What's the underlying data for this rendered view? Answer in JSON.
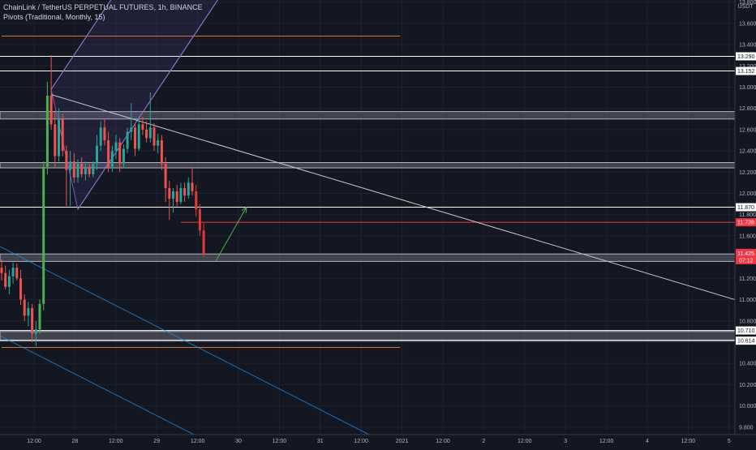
{
  "header": {
    "symbol_line": "ChainLink / TetherUS PERPETUAL FUTURES, 1h, BINANCE",
    "indicator_line": "Pivots (Traditional, Monthly, 15)"
  },
  "price_axis": {
    "currency": "USDT",
    "ticks": [
      "13.800",
      "13.600",
      "13.400",
      "13.200",
      "13.000",
      "12.800",
      "12.600",
      "12.400",
      "12.200",
      "12.000",
      "11.800",
      "11.600",
      "11.400",
      "11.200",
      "11.000",
      "10.800",
      "10.600",
      "10.400",
      "10.200",
      "10.000",
      "9.800"
    ],
    "level_labels": [
      {
        "text": "13.290",
        "value": 13.29
      },
      {
        "text": "13.152",
        "value": 13.152
      },
      {
        "text": "11.870",
        "value": 11.87
      },
      {
        "text": "11.728",
        "value": 11.728
      },
      {
        "text": "10.710",
        "value": 10.71
      },
      {
        "text": "10.614",
        "value": 10.614
      }
    ],
    "last_price": {
      "price": "11.425",
      "countdown": "07:12",
      "value": 11.425
    }
  },
  "time_axis": {
    "ticks": [
      "12:00",
      "28",
      "12:00",
      "29",
      "12:00",
      "30",
      "12:00",
      "31",
      "12:00",
      "2021",
      "12:00",
      "2",
      "12:00",
      "3",
      "12:00",
      "4",
      "12:00",
      "5"
    ]
  },
  "colors": {
    "background": "#131722",
    "grid": "#1e222d",
    "up": "#26a69a",
    "down": "#ef5350",
    "bright_up": "#4caf50",
    "bright_down": "#e53935",
    "level_line": "#ffffff",
    "zone": "#787b86",
    "pivot": "#e0702a",
    "channel": "#7e57c2",
    "teal_line": "#2196f3",
    "red_level": "#f23645",
    "arrow": "#4caf50"
  },
  "chart_data": {
    "type": "candlestick",
    "title": "ChainLink / TetherUS PERPETUAL FUTURES, 1h, BINANCE",
    "timeframe": "1h",
    "ylim": [
      9.73,
      13.82
    ],
    "grid": true,
    "candles": [
      {
        "o": 11.3,
        "h": 11.38,
        "l": 11.18,
        "c": 11.25
      },
      {
        "o": 11.25,
        "h": 11.32,
        "l": 11.1,
        "c": 11.12
      },
      {
        "o": 11.12,
        "h": 11.28,
        "l": 11.05,
        "c": 11.22
      },
      {
        "o": 11.22,
        "h": 11.35,
        "l": 11.15,
        "c": 11.3
      },
      {
        "o": 11.3,
        "h": 11.34,
        "l": 11.18,
        "c": 11.2
      },
      {
        "o": 11.2,
        "h": 11.28,
        "l": 10.95,
        "c": 11.0
      },
      {
        "o": 11.0,
        "h": 11.05,
        "l": 10.8,
        "c": 10.85
      },
      {
        "o": 10.85,
        "h": 10.98,
        "l": 10.75,
        "c": 10.92
      },
      {
        "o": 10.92,
        "h": 10.96,
        "l": 10.6,
        "c": 10.68
      },
      {
        "o": 10.68,
        "h": 10.8,
        "l": 10.56,
        "c": 10.72
      },
      {
        "o": 10.72,
        "h": 11.0,
        "l": 10.68,
        "c": 10.96
      },
      {
        "o": 10.96,
        "h": 12.3,
        "l": 10.9,
        "c": 12.25
      },
      {
        "o": 12.25,
        "h": 13.05,
        "l": 12.18,
        "c": 12.92
      },
      {
        "o": 12.92,
        "h": 13.3,
        "l": 12.6,
        "c": 12.65
      },
      {
        "o": 12.65,
        "h": 12.78,
        "l": 12.25,
        "c": 12.35
      },
      {
        "o": 12.35,
        "h": 12.8,
        "l": 12.3,
        "c": 12.7
      },
      {
        "o": 12.7,
        "h": 12.75,
        "l": 12.35,
        "c": 12.4
      },
      {
        "o": 12.4,
        "h": 12.45,
        "l": 11.88,
        "c": 12.22
      },
      {
        "o": 12.22,
        "h": 12.4,
        "l": 11.88,
        "c": 12.3
      },
      {
        "o": 12.3,
        "h": 12.38,
        "l": 12.1,
        "c": 12.15
      },
      {
        "o": 12.15,
        "h": 12.32,
        "l": 12.1,
        "c": 12.28
      },
      {
        "o": 12.28,
        "h": 12.34,
        "l": 12.15,
        "c": 12.18
      },
      {
        "o": 12.18,
        "h": 12.3,
        "l": 12.12,
        "c": 12.25
      },
      {
        "o": 12.25,
        "h": 12.28,
        "l": 12.15,
        "c": 12.18
      },
      {
        "o": 12.18,
        "h": 12.3,
        "l": 12.15,
        "c": 12.28
      },
      {
        "o": 12.28,
        "h": 12.55,
        "l": 12.22,
        "c": 12.45
      },
      {
        "o": 12.45,
        "h": 12.68,
        "l": 12.4,
        "c": 12.62
      },
      {
        "o": 12.62,
        "h": 12.7,
        "l": 12.45,
        "c": 12.5
      },
      {
        "o": 12.5,
        "h": 12.58,
        "l": 12.2,
        "c": 12.25
      },
      {
        "o": 12.25,
        "h": 12.45,
        "l": 12.2,
        "c": 12.4
      },
      {
        "o": 12.4,
        "h": 12.55,
        "l": 12.32,
        "c": 12.48
      },
      {
        "o": 12.48,
        "h": 12.52,
        "l": 12.2,
        "c": 12.28
      },
      {
        "o": 12.28,
        "h": 12.46,
        "l": 12.24,
        "c": 12.42
      },
      {
        "o": 12.42,
        "h": 12.62,
        "l": 12.38,
        "c": 12.58
      },
      {
        "o": 12.58,
        "h": 12.85,
        "l": 12.5,
        "c": 12.62
      },
      {
        "o": 12.62,
        "h": 12.66,
        "l": 12.35,
        "c": 12.42
      },
      {
        "o": 12.42,
        "h": 12.7,
        "l": 12.4,
        "c": 12.65
      },
      {
        "o": 12.65,
        "h": 12.72,
        "l": 12.55,
        "c": 12.6
      },
      {
        "o": 12.6,
        "h": 12.68,
        "l": 12.48,
        "c": 12.52
      },
      {
        "o": 12.52,
        "h": 12.95,
        "l": 12.48,
        "c": 12.62
      },
      {
        "o": 12.62,
        "h": 12.66,
        "l": 12.4,
        "c": 12.45
      },
      {
        "o": 12.45,
        "h": 12.56,
        "l": 12.38,
        "c": 12.5
      },
      {
        "o": 12.5,
        "h": 12.55,
        "l": 12.22,
        "c": 12.28
      },
      {
        "o": 12.28,
        "h": 12.34,
        "l": 11.92,
        "c": 12.05
      },
      {
        "o": 12.05,
        "h": 12.12,
        "l": 11.75,
        "c": 11.95
      },
      {
        "o": 11.95,
        "h": 12.05,
        "l": 11.82,
        "c": 12.02
      },
      {
        "o": 12.02,
        "h": 12.08,
        "l": 11.88,
        "c": 11.92
      },
      {
        "o": 11.92,
        "h": 12.1,
        "l": 11.9,
        "c": 12.05
      },
      {
        "o": 12.05,
        "h": 12.1,
        "l": 11.92,
        "c": 11.98
      },
      {
        "o": 11.98,
        "h": 12.15,
        "l": 11.95,
        "c": 12.1
      },
      {
        "o": 12.1,
        "h": 12.25,
        "l": 11.98,
        "c": 12.02
      },
      {
        "o": 12.02,
        "h": 12.08,
        "l": 11.78,
        "c": 11.85
      },
      {
        "o": 11.85,
        "h": 11.9,
        "l": 11.6,
        "c": 11.65
      },
      {
        "o": 11.65,
        "h": 11.72,
        "l": 11.4,
        "c": 11.43
      }
    ],
    "horizontal_levels": [
      13.29,
      13.152,
      11.87,
      10.71,
      10.614
    ],
    "zones": [
      [
        12.7,
        12.77
      ],
      [
        12.24,
        12.29
      ],
      [
        11.36,
        11.43
      ],
      [
        10.62,
        10.7
      ]
    ],
    "pivot_levels": [
      13.48,
      10.55
    ],
    "red_level": 11.728,
    "last_price": 11.425
  }
}
